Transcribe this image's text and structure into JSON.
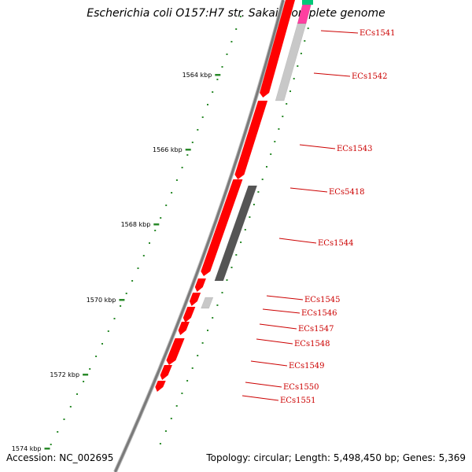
{
  "title": "Escherichia coli O157:H7 str. Sakai, complete genome",
  "footer": {
    "accession": "Accession: NC_002695",
    "topology": "Topology: circular; Length: 5,498,450 bp; Genes: 5,369"
  },
  "colors": {
    "backbone": "#7a7a7a",
    "gene_forward": "#ff0000",
    "gene_pseudo": "#ff3fa0",
    "gene_other": "#c8c8c8",
    "gene_dark": "#555555",
    "tick": "#2a8a2a",
    "leader": "#cc0000",
    "top_right_accent": "#00c878"
  },
  "kbp_ticks": [
    {
      "kbp": 1564,
      "label": "1564 kbp"
    },
    {
      "kbp": 1566,
      "label": "1566 kbp"
    },
    {
      "kbp": 1568,
      "label": "1568 kbp"
    },
    {
      "kbp": 1570,
      "label": "1570 kbp"
    },
    {
      "kbp": 1572,
      "label": "1572 kbp"
    },
    {
      "kbp": 1574,
      "label": "1574 kbp"
    }
  ],
  "genes": [
    {
      "name": "ECs1541",
      "label": "ECs1541"
    },
    {
      "name": "ECs1542",
      "label": "ECs1542"
    },
    {
      "name": "ECs1543",
      "label": "ECs1543"
    },
    {
      "name": "ECs5418",
      "label": "ECs5418"
    },
    {
      "name": "ECs1544",
      "label": "ECs1544"
    },
    {
      "name": "ECs1545",
      "label": "ECs1545"
    },
    {
      "name": "ECs1546",
      "label": "ECs1546"
    },
    {
      "name": "ECs1547",
      "label": "ECs1547"
    },
    {
      "name": "ECs1548",
      "label": "ECs1548"
    },
    {
      "name": "ECs1549",
      "label": "ECs1549"
    },
    {
      "name": "ECs1550",
      "label": "ECs1550"
    },
    {
      "name": "ECs1551",
      "label": "ECs1551"
    }
  ]
}
